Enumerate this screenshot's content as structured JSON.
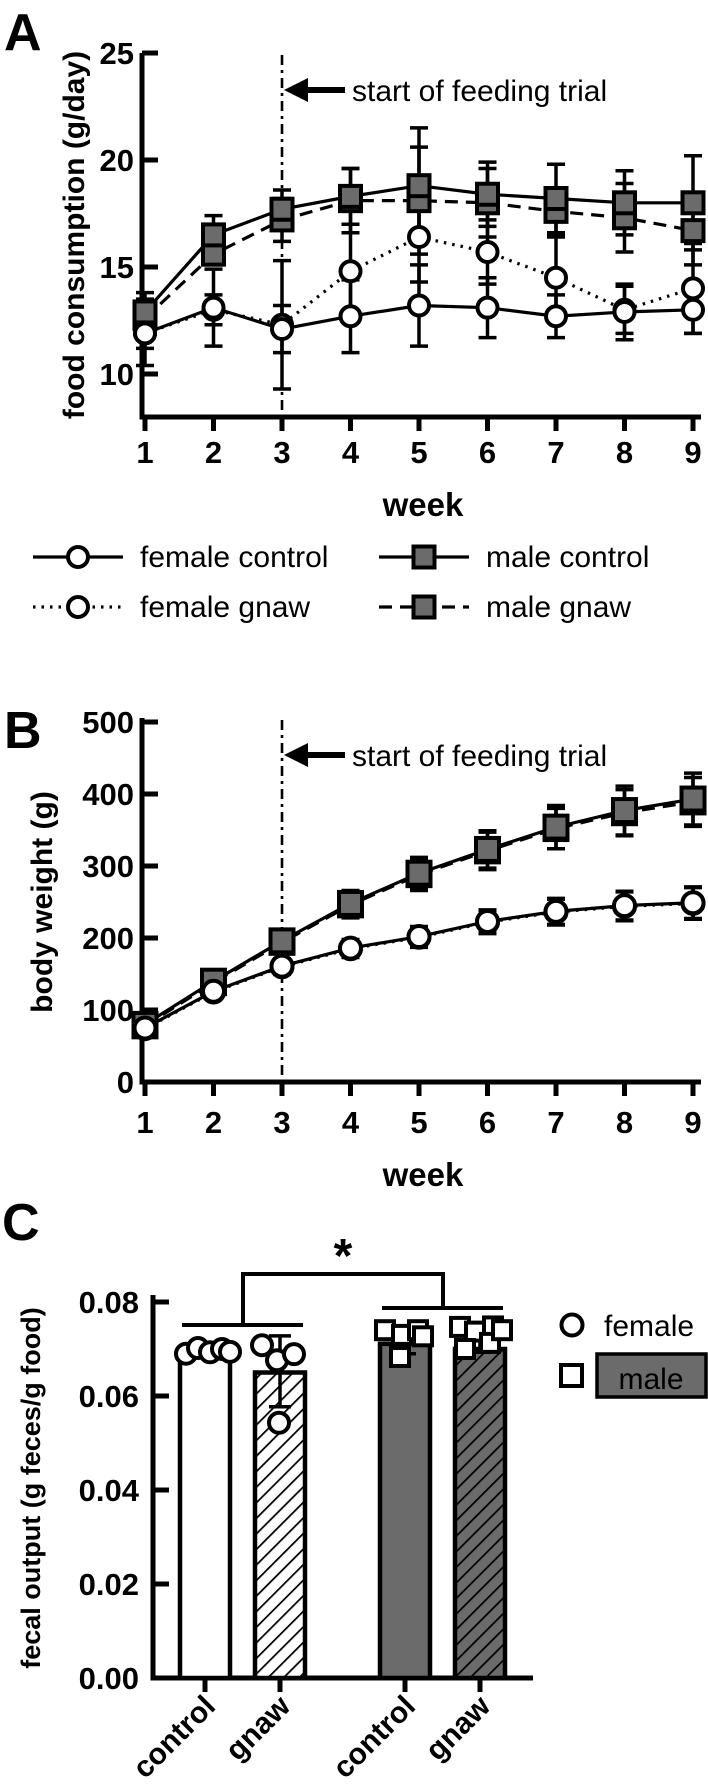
{
  "figure": {
    "panel_a": {
      "label": "A",
      "y_axis_title": "food consumption (g/day)",
      "x_axis_title": "week",
      "annotation": "start of feeding trial",
      "legend": [
        {
          "label": "female control",
          "marker": "circle",
          "line": "solid"
        },
        {
          "label": "female gnaw",
          "marker": "circle",
          "line": "dotted"
        },
        {
          "label": "male control",
          "marker": "square",
          "line": "solid"
        },
        {
          "label": "male gnaw",
          "marker": "square",
          "line": "dashed"
        }
      ]
    },
    "panel_b": {
      "label": "B",
      "y_axis_title": "body weight (g)",
      "x_axis_title": "week",
      "annotation": "start of feeding trial"
    },
    "panel_c": {
      "label": "C",
      "y_axis_title": "fecal output (g feces/g food)",
      "sig_label": "*",
      "legend": [
        {
          "label": "female",
          "marker": "circle"
        },
        {
          "label": "male",
          "marker": "square"
        }
      ]
    },
    "colors": {
      "marker_gray": "#6b6b6b",
      "black": "#000000",
      "white": "#ffffff"
    }
  },
  "chart_data": [
    {
      "id": "A",
      "type": "line",
      "title": "food consumption",
      "xlabel": "week",
      "ylabel": "food consumption (g/day)",
      "x": [
        1,
        2,
        3,
        4,
        5,
        6,
        7,
        8,
        9
      ],
      "ylim": [
        7.6,
        25
      ],
      "yticks": [
        25,
        20,
        15,
        10
      ],
      "ytick_labels": [
        "25",
        "20",
        "15",
        "10"
      ],
      "vline_x": 3,
      "legend_position": "below",
      "grid": false,
      "series": [
        {
          "name": "female control",
          "marker": "circle",
          "line": "solid",
          "values": [
            11.9,
            13.1,
            12.1,
            12.7,
            13.2,
            13.1,
            12.7,
            12.9,
            13.0
          ],
          "errors": [
            1.5,
            1.8,
            1.1,
            1.7,
            1.9,
            1.4,
            1.0,
            1.3,
            1.1
          ]
        },
        {
          "name": "female gnaw",
          "marker": "circle",
          "line": "dotted",
          "values": [
            11.9,
            13.0,
            12.3,
            14.8,
            16.4,
            15.7,
            14.5,
            13.0,
            14.0
          ],
          "errors": [
            0.7,
            0.7,
            3.0,
            2.2,
            2.1,
            1.5,
            1.9,
            1.1,
            2.1
          ]
        },
        {
          "name": "male control",
          "marker": "square",
          "line": "solid",
          "values": [
            12.9,
            16.5,
            17.7,
            18.3,
            18.8,
            18.4,
            18.2,
            18.0,
            18.0
          ],
          "errors": [
            0.9,
            0.9,
            0.9,
            1.3,
            2.7,
            1.5,
            1.6,
            1.5,
            2.2
          ]
        },
        {
          "name": "male gnaw",
          "marker": "square",
          "line": "dashed",
          "values": [
            12.6,
            15.6,
            17.2,
            18.1,
            18.1,
            18.0,
            17.6,
            17.3,
            16.7
          ],
          "errors": [
            0.9,
            0.5,
            1.0,
            1.5,
            2.5,
            1.6,
            1.1,
            1.6,
            1.6
          ]
        }
      ]
    },
    {
      "id": "B",
      "type": "line",
      "title": "body weight",
      "xlabel": "week",
      "ylabel": "body weight (g)",
      "x": [
        1,
        2,
        3,
        4,
        5,
        6,
        7,
        8,
        9
      ],
      "ylim": [
        0,
        500
      ],
      "yticks": [
        500,
        400,
        300,
        200,
        100,
        0
      ],
      "ytick_labels": [
        "500",
        "400",
        "300",
        "200",
        "100",
        "0"
      ],
      "vline_x": 3,
      "grid": false,
      "series": [
        {
          "name": "female control",
          "marker": "circle",
          "line": "solid",
          "values": [
            75,
            126,
            161,
            186,
            202,
            223,
            237,
            245,
            249
          ],
          "errors": [
            6,
            8,
            10,
            12,
            14,
            16,
            18,
            20,
            22
          ]
        },
        {
          "name": "female gnaw",
          "marker": "circle",
          "line": "dotted",
          "values": [
            74,
            125,
            160,
            185,
            201,
            222,
            236,
            244,
            248
          ],
          "errors": [
            6,
            8,
            10,
            12,
            14,
            16,
            18,
            20,
            22
          ]
        },
        {
          "name": "male control",
          "marker": "square",
          "line": "solid",
          "values": [
            80,
            140,
            196,
            248,
            290,
            323,
            354,
            377,
            393
          ],
          "errors": [
            8,
            10,
            14,
            18,
            22,
            26,
            30,
            34,
            36
          ]
        },
        {
          "name": "male gnaw",
          "marker": "square",
          "line": "dashed",
          "values": [
            78,
            138,
            194,
            246,
            288,
            321,
            352,
            374,
            389
          ],
          "errors": [
            8,
            10,
            14,
            18,
            22,
            26,
            28,
            32,
            34
          ]
        }
      ]
    },
    {
      "id": "C",
      "type": "bar",
      "title": "fecal output",
      "ylabel": "fecal output (g feces/g food)",
      "ylim": [
        0,
        0.08
      ],
      "yticks": [
        0.08,
        0.06,
        0.04,
        0.02,
        0
      ],
      "ytick_labels": [
        "0.08",
        "0.06",
        "0.04",
        "0.02",
        "0.00"
      ],
      "categories": [
        "control",
        "gnaw",
        "control",
        "gnaw"
      ],
      "groups": [
        "female",
        "female",
        "male",
        "male"
      ],
      "significance": {
        "label": "*",
        "comparison": "female vs male"
      },
      "bars": [
        {
          "category": "control",
          "group": "female",
          "style": "white",
          "marker": "circle",
          "value": 0.0698,
          "error_low": null,
          "error_high": null,
          "points": [
            [
              -19,
              0.069
            ],
            [
              -7,
              0.0702
            ],
            [
              5,
              0.0693
            ],
            [
              17,
              0.07
            ],
            [
              25,
              0.0694
            ]
          ]
        },
        {
          "category": "gnaw",
          "group": "female",
          "style": "white-hatch",
          "marker": "circle",
          "value": 0.065,
          "error_low": 0.0577,
          "error_high": 0.0728,
          "points": [
            [
              -18,
              0.0708
            ],
            [
              -3,
              0.0676
            ],
            [
              14,
              0.0689
            ],
            [
              -1,
              0.0543
            ]
          ]
        },
        {
          "category": "control",
          "group": "male",
          "style": "gray",
          "marker": "square",
          "value": 0.0711,
          "error_low": 0.069,
          "error_high": 0.0733,
          "points": [
            [
              -20,
              0.074
            ],
            [
              -3,
              0.073
            ],
            [
              13,
              0.074
            ],
            [
              -5,
              0.0683
            ],
            [
              18,
              0.0727
            ]
          ]
        },
        {
          "category": "gnaw",
          "group": "male",
          "style": "gray-hatch",
          "marker": "square",
          "value": 0.07,
          "error_low": 0.0693,
          "error_high": 0.0727,
          "points": [
            [
              -20,
              0.0747
            ],
            [
              -5,
              0.0737
            ],
            [
              13,
              0.0748
            ],
            [
              -15,
              0.07
            ],
            [
              10,
              0.0713
            ],
            [
              22,
              0.074
            ]
          ]
        }
      ]
    }
  ]
}
